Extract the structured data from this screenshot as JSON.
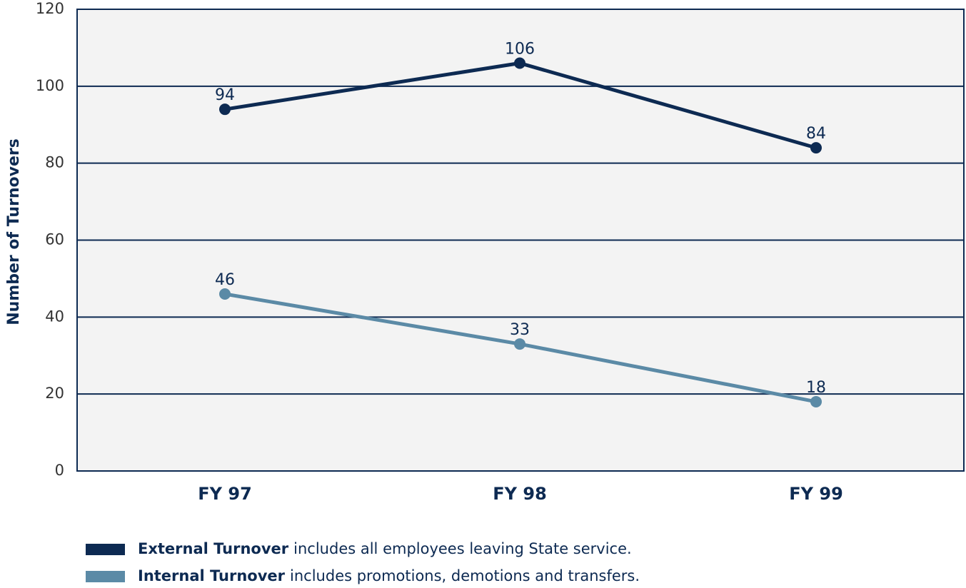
{
  "chart_data": {
    "type": "line",
    "y_label": "Number of Turnovers",
    "categories": [
      "FY 97",
      "FY 98",
      "FY 99"
    ],
    "series": [
      {
        "name": "External Turnover",
        "description": "includes all employees leaving State service.",
        "color": "#0d2a52",
        "values": [
          94,
          106,
          84
        ]
      },
      {
        "name": "Internal Turnover",
        "description": "includes promotions, demotions and transfers.",
        "color": "#5b8aa6",
        "values": [
          46,
          33,
          18
        ]
      }
    ],
    "ylim": [
      0,
      120
    ],
    "yticks": [
      0,
      20,
      40,
      60,
      80,
      100,
      120
    ],
    "grid": true
  }
}
